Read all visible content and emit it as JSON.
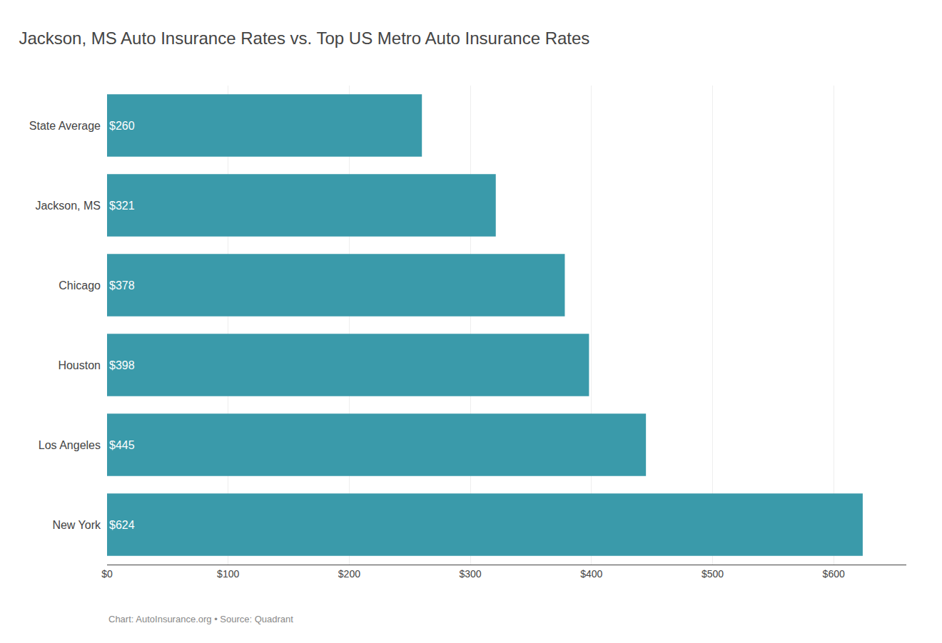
{
  "chart_data": {
    "type": "bar",
    "orientation": "horizontal",
    "title": "Jackson, MS Auto Insurance Rates vs. Top US Metro Auto Insurance Rates",
    "categories": [
      "State Average",
      "Jackson, MS",
      "Chicago",
      "Houston",
      "Los Angeles",
      "New York"
    ],
    "values": [
      260,
      321,
      378,
      398,
      445,
      624
    ],
    "value_labels": [
      "$260",
      "$321",
      "$378",
      "$398",
      "$445",
      "$624"
    ],
    "data_labels": true,
    "color": "#3a9aaa",
    "xlim": [
      0,
      660
    ],
    "xticks": [
      {
        "value": 0,
        "label": "$0"
      },
      {
        "value": 100,
        "label": "$100"
      },
      {
        "value": 200,
        "label": "$200"
      },
      {
        "value": 300,
        "label": "$300"
      },
      {
        "value": 400,
        "label": "$400"
      },
      {
        "value": 500,
        "label": "$500"
      },
      {
        "value": 600,
        "label": "$600"
      }
    ],
    "grid": true,
    "caption": "Chart: AutoInsurance.org • Source: Quadrant"
  }
}
